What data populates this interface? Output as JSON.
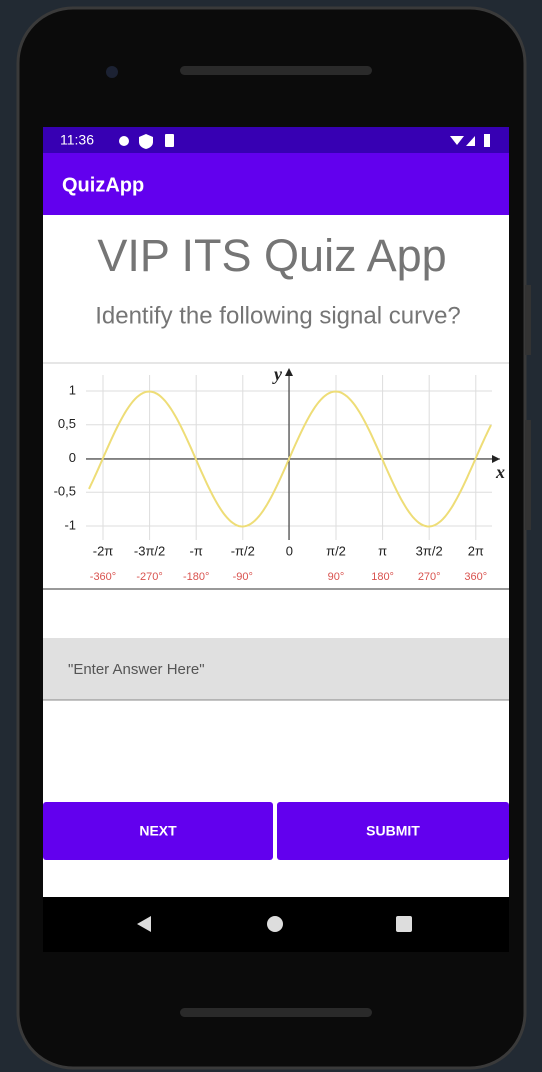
{
  "status_bar": {
    "time": "11:36"
  },
  "app_bar": {
    "title": "QuizApp"
  },
  "content": {
    "heading": "VIP ITS Quiz App",
    "question": "Identify the following signal curve?",
    "image": {
      "y_axis_label": "y",
      "x_axis_label": "x",
      "y_tick_labels": [
        "1",
        "0,5",
        "0",
        "-0,5",
        "-1"
      ],
      "x_tick_labels": [
        "-2π",
        "-3π/2",
        "-π",
        "-π/2",
        "0",
        "π/2",
        "π",
        "3π/2",
        "2π"
      ],
      "degree_labels": [
        "-360°",
        "-270°",
        "-180°",
        "-90°",
        null,
        "90°",
        "180°",
        "270°",
        "360°"
      ]
    }
  },
  "input": {
    "hint": "\"Enter Answer Here\""
  },
  "buttons": [
    "NEXT",
    "SUBMIT"
  ]
}
